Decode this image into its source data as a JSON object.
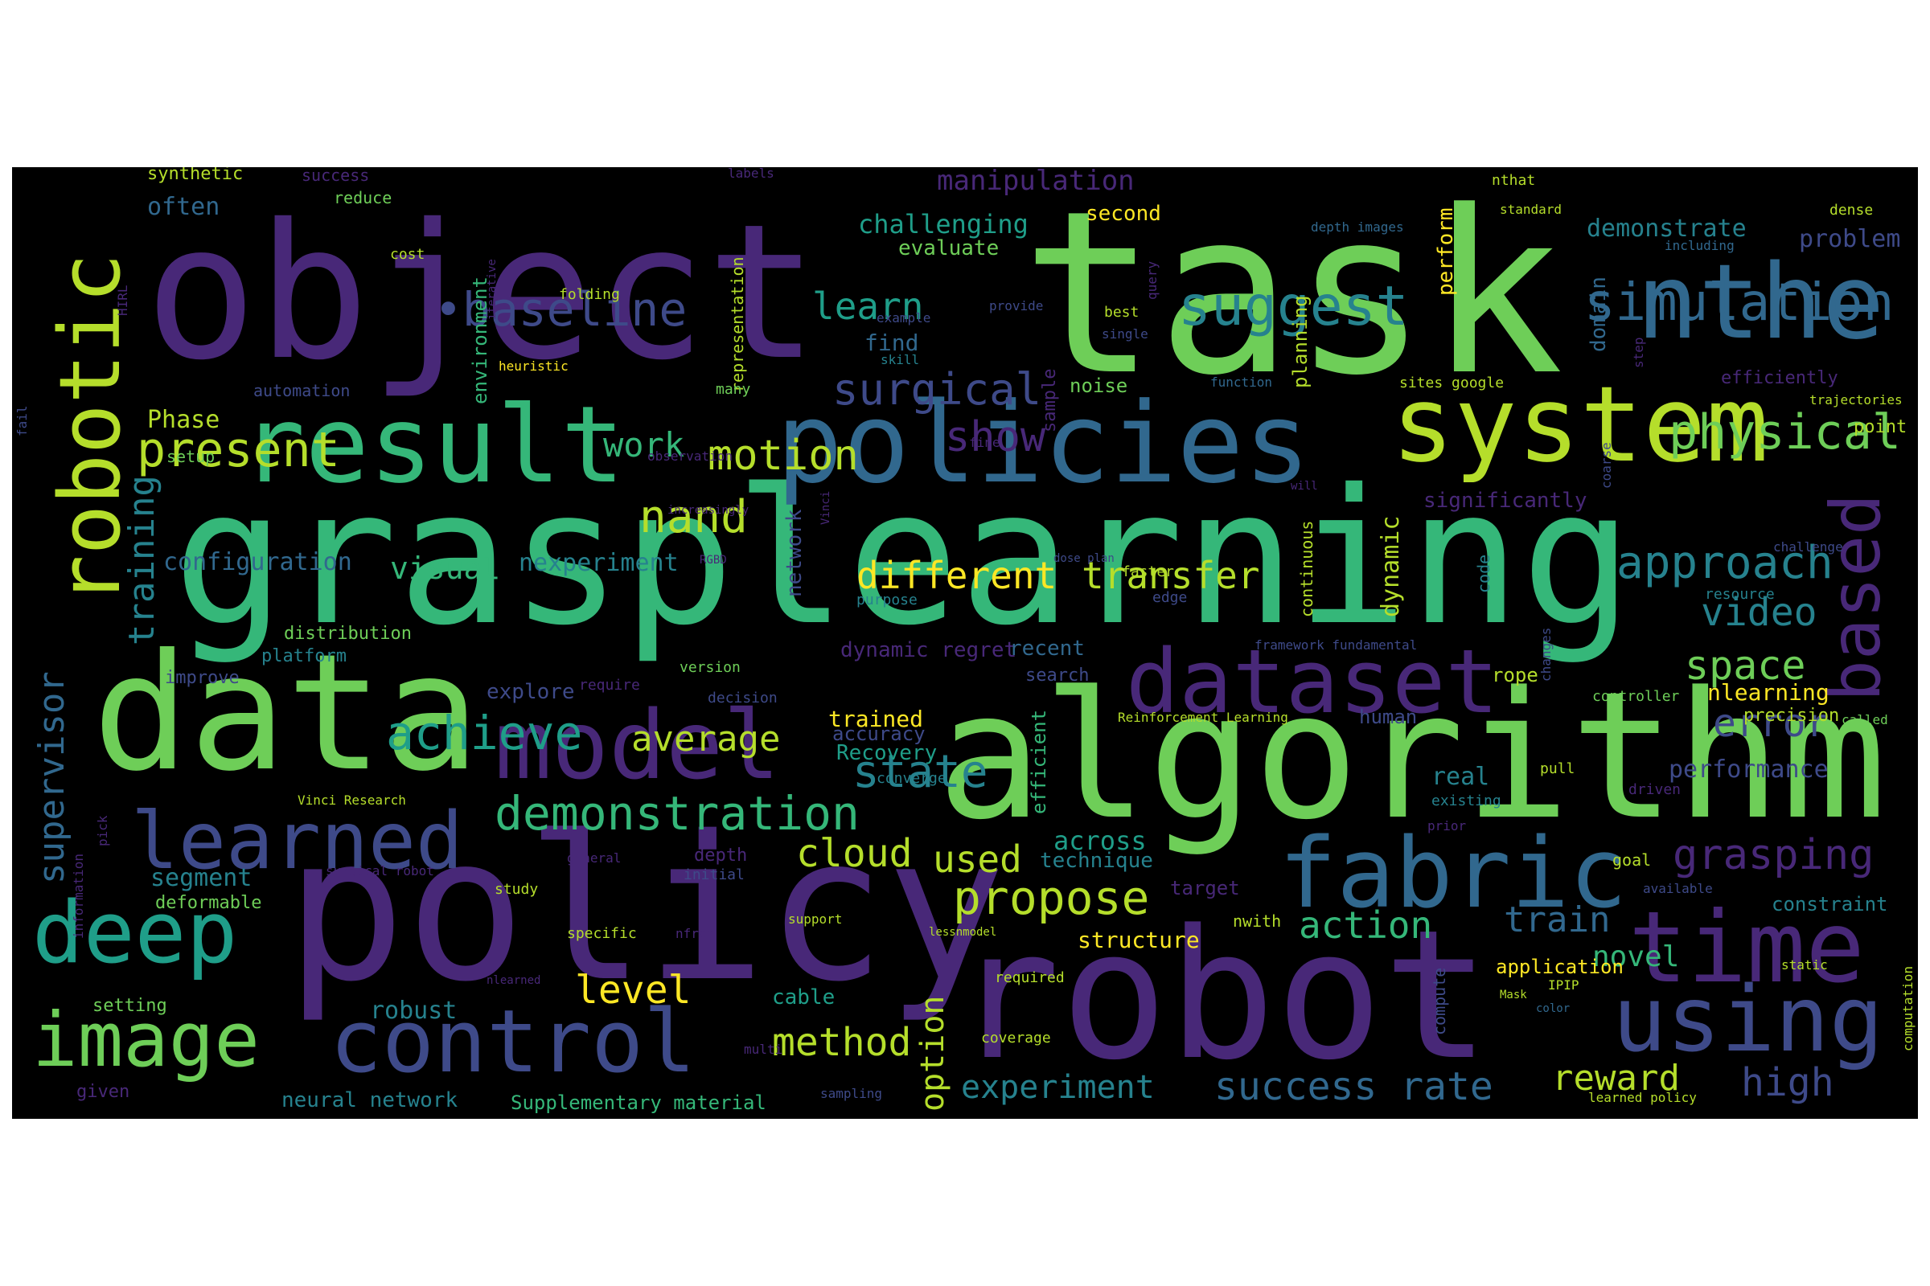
{
  "palette": [
    "#440154",
    "#482878",
    "#3e4a89",
    "#31688e",
    "#26828e",
    "#1f9e89",
    "#35b779",
    "#6ece58",
    "#b5de2b",
    "#fde725"
  ],
  "words": [
    {
      "id": "task",
      "text": "task",
      "color": "#6ece58"
    },
    {
      "id": "object",
      "text": "object",
      "color": "#482878"
    },
    {
      "id": "grasplearning",
      "text": "grasplearning",
      "color": "#35b779"
    },
    {
      "id": "algorithm",
      "text": "algorithm",
      "color": "#6ece58"
    },
    {
      "id": "policy",
      "text": "policy",
      "color": "#482878"
    },
    {
      "id": "robot",
      "text": "robot",
      "color": "#482878"
    },
    {
      "id": "data",
      "text": "data",
      "color": "#6ece58"
    },
    {
      "id": "policies",
      "text": "policies",
      "color": "#31688e"
    },
    {
      "id": "system",
      "text": "system",
      "color": "#b5de2b"
    },
    {
      "id": "result",
      "text": "result",
      "color": "#35b779"
    },
    {
      "id": "nthe",
      "text": "nthe",
      "color": "#31688e"
    },
    {
      "id": "dataset",
      "text": "dataset",
      "color": "#482878"
    },
    {
      "id": "model",
      "text": "model",
      "color": "#482878"
    },
    {
      "id": "fabric",
      "text": "fabric",
      "color": "#31688e"
    },
    {
      "id": "time",
      "text": "time",
      "color": "#482878"
    },
    {
      "id": "using",
      "text": "using",
      "color": "#3e4a89"
    },
    {
      "id": "control",
      "text": "control",
      "color": "#3e4a89"
    },
    {
      "id": "learned",
      "text": "learned",
      "color": "#3e4a89"
    },
    {
      "id": "deep",
      "text": "deep",
      "color": "#1f9e89"
    },
    {
      "id": "image",
      "text": "image",
      "color": "#6ece58"
    },
    {
      "id": "robotic",
      "text": "robotic",
      "color": "#b5de2b"
    },
    {
      "id": "based",
      "text": "based",
      "color": "#482878"
    },
    {
      "id": "suggest",
      "text": "suggest",
      "color": "#26828e"
    },
    {
      "id": "simulation",
      "text": "simulation",
      "color": "#31688e"
    },
    {
      "id": "physical",
      "text": "physical",
      "color": "#6ece58"
    },
    {
      "id": "baseline",
      "text": "•baseline",
      "color": "#3e4a89"
    },
    {
      "id": "present",
      "text": "present",
      "color": "#b5de2b"
    },
    {
      "id": "motion",
      "text": "motion",
      "color": "#b5de2b"
    },
    {
      "id": "nand",
      "text": "nand",
      "color": "#b5de2b"
    },
    {
      "id": "surgical",
      "text": "surgical",
      "color": "#3e4a89"
    },
    {
      "id": "learn",
      "text": "learn",
      "color": "#1f9e89"
    },
    {
      "id": "show",
      "text": "show",
      "color": "#482878"
    },
    {
      "id": "work",
      "text": "work",
      "color": "#35b779"
    },
    {
      "id": "approach",
      "text": "approach",
      "color": "#26828e"
    },
    {
      "id": "video",
      "text": "video",
      "color": "#26828e"
    },
    {
      "id": "space",
      "text": "space",
      "color": "#6ece58"
    },
    {
      "id": "error",
      "text": "error",
      "color": "#3e4a89"
    },
    {
      "id": "performance",
      "text": "performance",
      "color": "#3e4a89"
    },
    {
      "id": "achieve",
      "text": "achieve",
      "color": "#1f9e89"
    },
    {
      "id": "average",
      "text": "average",
      "color": "#b5de2b"
    },
    {
      "id": "state",
      "text": "state",
      "color": "#26828e"
    },
    {
      "id": "demonstration",
      "text": "demonstration",
      "color": "#35b779"
    },
    {
      "id": "different",
      "text": "different",
      "color": "#fde725"
    },
    {
      "id": "transfer",
      "text": "transfer",
      "color": "#b5de2b"
    },
    {
      "id": "visual",
      "text": "visual",
      "color": "#35b779"
    },
    {
      "id": "nexperiment",
      "text": "nexperiment",
      "color": "#26828e"
    },
    {
      "id": "configuration",
      "text": "configuration",
      "color": "#31688e"
    },
    {
      "id": "training",
      "text": "training",
      "color": "#26828e"
    },
    {
      "id": "supervisor",
      "text": "supervisor",
      "color": "#31688e"
    },
    {
      "id": "cloud",
      "text": "cloud",
      "color": "#b5de2b"
    },
    {
      "id": "used",
      "text": "used",
      "color": "#b5de2b"
    },
    {
      "id": "propose",
      "text": "propose",
      "color": "#b5de2b"
    },
    {
      "id": "grasping",
      "text": "grasping",
      "color": "#482878"
    },
    {
      "id": "action",
      "text": "action",
      "color": "#35b779"
    },
    {
      "id": "train",
      "text": "train",
      "color": "#31688e"
    },
    {
      "id": "novel",
      "text": "novel",
      "color": "#35b779"
    },
    {
      "id": "level",
      "text": "level",
      "color": "#fde725"
    },
    {
      "id": "method",
      "text": "method",
      "color": "#b5de2b"
    },
    {
      "id": "option",
      "text": "option",
      "color": "#b5de2b"
    },
    {
      "id": "experiment",
      "text": "experiment",
      "color": "#26828e"
    },
    {
      "id": "success-rate",
      "text": "success rate",
      "color": "#31688e"
    },
    {
      "id": "reward",
      "text": "reward",
      "color": "#b5de2b"
    },
    {
      "id": "high",
      "text": "high",
      "color": "#3e4a89"
    },
    {
      "id": "segment",
      "text": "segment",
      "color": "#26828e"
    },
    {
      "id": "robust",
      "text": "robust",
      "color": "#26828e"
    },
    {
      "id": "deformable",
      "text": "deformable",
      "color": "#6ece58"
    },
    {
      "id": "setting",
      "text": "setting",
      "color": "#6ece58"
    },
    {
      "id": "neural-network",
      "text": "neural network",
      "color": "#26828e"
    },
    {
      "id": "supplementary-material",
      "text": "Supplementary material",
      "color": "#35b779"
    },
    {
      "id": "phase",
      "text": "Phase",
      "color": "#b5de2b"
    },
    {
      "id": "synthetic",
      "text": "synthetic",
      "color": "#b5de2b"
    },
    {
      "id": "often",
      "text": "often",
      "color": "#31688e"
    },
    {
      "id": "manipulation",
      "text": "manipulation",
      "color": "#482878"
    },
    {
      "id": "challenging",
      "text": "challenging",
      "color": "#1f9e89"
    },
    {
      "id": "evaluate",
      "text": "evaluate",
      "color": "#6ece58"
    },
    {
      "id": "demonstrate",
      "text": "demonstrate",
      "color": "#26828e"
    },
    {
      "id": "problem",
      "text": "problem",
      "color": "#3e4a89"
    },
    {
      "id": "significantly",
      "text": "significantly",
      "color": "#482878"
    },
    {
      "id": "dynamic",
      "text": "dynamic",
      "color": "#b5de2b"
    },
    {
      "id": "dynamic-regret",
      "text": "dynamic regret",
      "color": "#482878"
    },
    {
      "id": "recent",
      "text": "recent",
      "color": "#31688e"
    },
    {
      "id": "trained",
      "text": "trained",
      "color": "#fde725"
    },
    {
      "id": "accuracy",
      "text": "accuracy",
      "color": "#3e4a89"
    },
    {
      "id": "recovery",
      "text": "Recovery",
      "color": "#1f9e89"
    },
    {
      "id": "across",
      "text": "across",
      "color": "#1f9e89"
    },
    {
      "id": "technique",
      "text": "technique",
      "color": "#26828e"
    },
    {
      "id": "target",
      "text": "target",
      "color": "#482878"
    },
    {
      "id": "structure",
      "text": "structure",
      "color": "#fde725"
    },
    {
      "id": "real",
      "text": "real",
      "color": "#26828e"
    },
    {
      "id": "nlearning",
      "text": "nlearning",
      "color": "#fde725"
    },
    {
      "id": "precision",
      "text": "precision",
      "color": "#b5de2b"
    },
    {
      "id": "constraint",
      "text": "constraint",
      "color": "#26828e"
    },
    {
      "id": "application",
      "text": "application",
      "color": "#fde725"
    },
    {
      "id": "human",
      "text": "human",
      "color": "#3e4a89"
    },
    {
      "id": "cable",
      "text": "cable",
      "color": "#1f9e89"
    },
    {
      "id": "improve",
      "text": "improve",
      "color": "#3e4a89"
    },
    {
      "id": "platform",
      "text": "platform",
      "color": "#26828e"
    },
    {
      "id": "distribution",
      "text": "distribution",
      "color": "#6ece58"
    },
    {
      "id": "explore",
      "text": "explore",
      "color": "#3e4a89"
    },
    {
      "id": "planning",
      "text": "planning",
      "color": "#b5de2b"
    },
    {
      "id": "perform",
      "text": "perform",
      "color": "#fde725"
    },
    {
      "id": "domain",
      "text": "domain",
      "color": "#31688e"
    },
    {
      "id": "network",
      "text": "network",
      "color": "#3e4a89"
    },
    {
      "id": "efficient",
      "text": "efficient",
      "color": "#35b779"
    },
    {
      "id": "environment",
      "text": "environment",
      "color": "#35b779"
    },
    {
      "id": "representation",
      "text": "representation",
      "color": "#b5de2b"
    },
    {
      "id": "second",
      "text": "second",
      "color": "#fde725"
    },
    {
      "id": "find",
      "text": "find",
      "color": "#31688e"
    },
    {
      "id": "noise",
      "text": "noise",
      "color": "#6ece58"
    },
    {
      "id": "sample",
      "text": "sample",
      "color": "#482878"
    },
    {
      "id": "reduce",
      "text": "reduce",
      "color": "#6ece58"
    },
    {
      "id": "cost",
      "text": "cost",
      "color": "#b5de2b"
    },
    {
      "id": "folding",
      "text": "folding",
      "color": "#b5de2b"
    },
    {
      "id": "automation",
      "text": "automation",
      "color": "#3e4a89"
    },
    {
      "id": "setup",
      "text": "setup",
      "color": "#6ece58"
    },
    {
      "id": "heuristic",
      "text": "heuristic",
      "color": "#fde725"
    },
    {
      "id": "many",
      "text": "many",
      "color": "#6ece58"
    },
    {
      "id": "skill",
      "text": "skill",
      "color": "#26828e"
    },
    {
      "id": "example",
      "text": "example",
      "color": "#3e4a89"
    },
    {
      "id": "provide",
      "text": "provide",
      "color": "#3e4a89"
    },
    {
      "id": "best",
      "text": "best",
      "color": "#b5de2b"
    },
    {
      "id": "single",
      "text": "single",
      "color": "#3e4a89"
    },
    {
      "id": "query",
      "text": "query",
      "color": "#482878"
    },
    {
      "id": "function",
      "text": "function",
      "color": "#31688e"
    },
    {
      "id": "sites-google",
      "text": "sites google",
      "color": "#b5de2b"
    },
    {
      "id": "efficiently",
      "text": "efficiently",
      "color": "#482878"
    },
    {
      "id": "trajectories",
      "text": "trajectories",
      "color": "#b5de2b"
    },
    {
      "id": "point",
      "text": "point",
      "color": "#b5de2b"
    },
    {
      "id": "nthat",
      "text": "nthat",
      "color": "#b5de2b"
    },
    {
      "id": "standard",
      "text": "standard",
      "color": "#b5de2b"
    },
    {
      "id": "depth-images",
      "text": "depth images",
      "color": "#31688e"
    },
    {
      "id": "including",
      "text": "including",
      "color": "#31688e"
    },
    {
      "id": "dense",
      "text": "dense",
      "color": "#b5de2b"
    },
    {
      "id": "step",
      "text": "step",
      "color": "#482878"
    },
    {
      "id": "coarse",
      "text": "coarse",
      "color": "#3e4a89"
    },
    {
      "id": "continuous",
      "text": "continuous",
      "color": "#b5de2b"
    },
    {
      "id": "code",
      "text": "code",
      "color": "#26828e"
    },
    {
      "id": "rope",
      "text": "rope",
      "color": "#b5de2b"
    },
    {
      "id": "search",
      "text": "search",
      "color": "#3e4a89"
    },
    {
      "id": "decision",
      "text": "decision",
      "color": "#3e4a89"
    },
    {
      "id": "require",
      "text": "require",
      "color": "#482878"
    },
    {
      "id": "version",
      "text": "version",
      "color": "#6ece58"
    },
    {
      "id": "reinforcement-learning",
      "text": "Reinforcement Learning",
      "color": "#b5de2b"
    },
    {
      "id": "controller",
      "text": "controller",
      "color": "#6ece58"
    },
    {
      "id": "called",
      "text": "called",
      "color": "#6ece58"
    },
    {
      "id": "framework-fundamental",
      "text": "framework fundamental",
      "color": "#3e4a89"
    },
    {
      "id": "changes",
      "text": "changes",
      "color": "#3e4a89"
    },
    {
      "id": "resource",
      "text": "resource",
      "color": "#26828e"
    },
    {
      "id": "challenge",
      "text": "challenge",
      "color": "#3e4a89"
    },
    {
      "id": "faster",
      "text": "faster",
      "color": "#b5de2b"
    },
    {
      "id": "edge",
      "text": "edge",
      "color": "#3e4a89"
    },
    {
      "id": "dose-plan",
      "text": "dose plan",
      "color": "#3e4a89"
    },
    {
      "id": "purpose",
      "text": "purpose",
      "color": "#26828e"
    },
    {
      "id": "vinci",
      "text": "Vinci",
      "color": "#482878"
    },
    {
      "id": "rgbd",
      "text": "RGBD",
      "color": "#482878"
    },
    {
      "id": "will",
      "text": "will",
      "color": "#482878"
    },
    {
      "id": "increasingly",
      "text": "increasingly",
      "color": "#482878"
    },
    {
      "id": "observation",
      "text": "observation",
      "color": "#482878"
    },
    {
      "id": "fine",
      "text": "fine",
      "color": "#482878"
    },
    {
      "id": "labels",
      "text": "labels",
      "color": "#482878"
    },
    {
      "id": "success",
      "text": "success",
      "color": "#482878"
    },
    {
      "id": "iterative",
      "text": "iterative",
      "color": "#482878"
    },
    {
      "id": "hirl",
      "text": "HIRL",
      "color": "#482878"
    },
    {
      "id": "fail",
      "text": "fail",
      "color": "#3e4a89"
    },
    {
      "id": "vinci-research",
      "text": "Vinci Research",
      "color": "#b5de2b"
    },
    {
      "id": "pick",
      "text": "pick",
      "color": "#482878"
    },
    {
      "id": "information",
      "text": "information",
      "color": "#482878"
    },
    {
      "id": "given",
      "text": "given",
      "color": "#482878"
    },
    {
      "id": "depth",
      "text": "depth",
      "color": "#482878"
    },
    {
      "id": "general",
      "text": "general",
      "color": "#482878"
    },
    {
      "id": "initial",
      "text": "initial",
      "color": "#3e4a89"
    },
    {
      "id": "surgical-robot",
      "text": "surgical robot",
      "color": "#482878"
    },
    {
      "id": "study",
      "text": "study",
      "color": "#b5de2b"
    },
    {
      "id": "specific",
      "text": "specific",
      "color": "#b5de2b"
    },
    {
      "id": "nfrom",
      "text": "nfrom",
      "color": "#482878"
    },
    {
      "id": "support",
      "text": "support",
      "color": "#b5de2b"
    },
    {
      "id": "lessnmodel",
      "text": "lessnmodel",
      "color": "#b5de2b"
    },
    {
      "id": "nwith",
      "text": "nwith",
      "color": "#b5de2b"
    },
    {
      "id": "required",
      "text": "required",
      "color": "#b5de2b"
    },
    {
      "id": "coverage",
      "text": "coverage",
      "color": "#b5de2b"
    },
    {
      "id": "sampling",
      "text": "sampling",
      "color": "#3e4a89"
    },
    {
      "id": "multi",
      "text": "multi",
      "color": "#482878"
    },
    {
      "id": "nlearned",
      "text": "nlearned",
      "color": "#482878"
    },
    {
      "id": "compute",
      "text": "compute",
      "color": "#3e4a89"
    },
    {
      "id": "mask",
      "text": "Mask",
      "color": "#b5de2b"
    },
    {
      "id": "color",
      "text": "color",
      "color": "#31688e"
    },
    {
      "id": "ipip",
      "text": "IPIP",
      "color": "#b5de2b"
    },
    {
      "id": "learned-policy",
      "text": "learned policy",
      "color": "#b5de2b"
    },
    {
      "id": "static",
      "text": "static",
      "color": "#b5de2b"
    },
    {
      "id": "computation",
      "text": "computation",
      "color": "#b5de2b"
    },
    {
      "id": "available",
      "text": "available",
      "color": "#3e4a89"
    },
    {
      "id": "goal",
      "text": "goal",
      "color": "#b5de2b"
    },
    {
      "id": "prior",
      "text": "prior",
      "color": "#482878"
    },
    {
      "id": "driven",
      "text": "driven",
      "color": "#482878"
    },
    {
      "id": "pull",
      "text": "pull",
      "color": "#b5de2b"
    },
    {
      "id": "existing",
      "text": "existing",
      "color": "#26828e"
    },
    {
      "id": "converge",
      "text": "converge",
      "color": "#26828e"
    }
  ]
}
